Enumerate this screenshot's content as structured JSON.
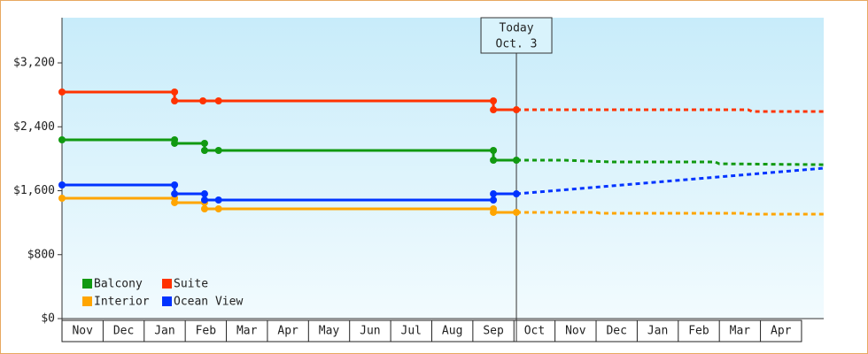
{
  "chart_data": {
    "type": "step-line",
    "categories": [
      "Nov",
      "Dec",
      "Jan",
      "Feb",
      "Mar",
      "Apr",
      "May",
      "Jun",
      "Jul",
      "Aug",
      "Sep",
      "Oct",
      "Nov",
      "Dec",
      "Jan",
      "Feb",
      "Mar",
      "Apr"
    ],
    "xlim": [
      0,
      18.54
    ],
    "ylim": [
      0,
      3765
    ],
    "yticks": [
      {
        "value": 0,
        "label": "$0"
      },
      {
        "value": 800,
        "label": "$800"
      },
      {
        "value": 1600,
        "label": "$1,600"
      },
      {
        "value": 2400,
        "label": "$2,400"
      },
      {
        "value": 3200,
        "label": "$3,200"
      }
    ],
    "today": {
      "label": "Today",
      "date": "Oct. 3",
      "x": 11.06
    },
    "series": [
      {
        "name": "Balcony",
        "color": "#119911",
        "x": [
          0,
          2.74,
          2.74,
          3.47,
          3.47,
          3.81,
          10.5,
          10.5,
          11.06
        ],
        "values": [
          2237,
          2237,
          2193,
          2193,
          2104,
          2104,
          2104,
          1982,
          1982
        ],
        "forecast_x": [
          11.06,
          12.2,
          13.4,
          15.9,
          16.0,
          18.54
        ],
        "forecast_values": [
          1982,
          1982,
          1960,
          1960,
          1937,
          1926
        ]
      },
      {
        "name": "Suite",
        "color": "#ff3300",
        "x": [
          0,
          2.74,
          2.74,
          3.43,
          3.81,
          10.5,
          10.5,
          11.06
        ],
        "values": [
          2835,
          2835,
          2724,
          2724,
          2724,
          2724,
          2613,
          2613
        ],
        "forecast_x": [
          11.06,
          16.7,
          16.8,
          18.54
        ],
        "forecast_values": [
          2613,
          2613,
          2591,
          2591
        ]
      },
      {
        "name": "Interior",
        "color": "#ffa500",
        "x": [
          0,
          2.74,
          2.74,
          3.47,
          3.47,
          3.81,
          10.5,
          10.5,
          11.06
        ],
        "values": [
          1506,
          1506,
          1451,
          1451,
          1373,
          1373,
          1373,
          1329,
          1329
        ],
        "forecast_x": [
          11.06,
          13.0,
          13.1,
          16.6,
          16.7,
          18.54
        ],
        "forecast_values": [
          1329,
          1329,
          1318,
          1318,
          1306,
          1306
        ]
      },
      {
        "name": "Ocean View",
        "color": "#0033ff",
        "x": [
          0,
          2.74,
          2.74,
          3.47,
          3.47,
          3.81,
          10.5,
          10.5,
          11.06
        ],
        "values": [
          1672,
          1672,
          1561,
          1561,
          1484,
          1484,
          1484,
          1561,
          1561
        ],
        "forecast_x": [
          11.06,
          18.54
        ],
        "forecast_values": [
          1561,
          1882
        ]
      }
    ]
  }
}
